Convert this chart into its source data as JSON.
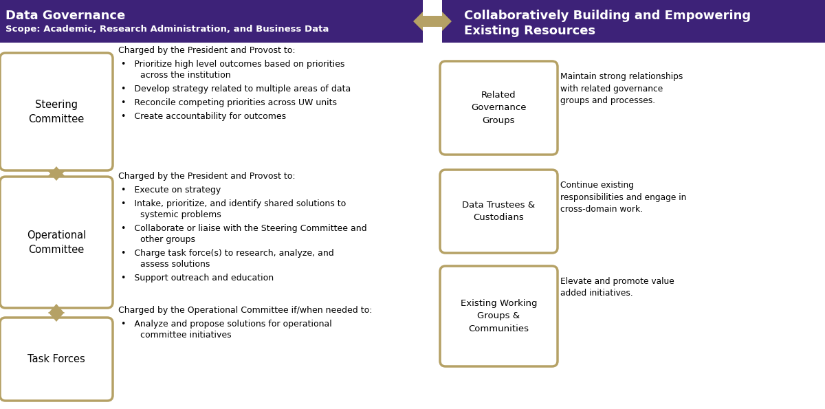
{
  "fig_width": 12.0,
  "fig_height": 5.95,
  "bg_color": "#ffffff",
  "purple": "#3d2278",
  "gold": "#b5a165",
  "header_left_title": "Data Governance",
  "header_left_subtitle": "Scope: Academic, Research Administration, and Business Data",
  "header_right_title": "Collaboratively Building and Empowering\nExisting Resources",
  "sc_label": "Steering\nCommittee",
  "oc_label": "Operational\nCommittee",
  "tf_label": "Task Forces",
  "rg_label": "Related\nGovernance\nGroups",
  "dt_label": "Data Trustees &\nCustodians",
  "ew_label": "Existing Working\nGroups &\nCommunities",
  "sc_header": "Charged by the President and Provost to:",
  "sc_bullets": [
    "Prioritize high level outcomes based on priorities\n       across the institution",
    "Develop strategy related to multiple areas of data",
    "Reconcile competing priorities across UW units",
    "Create accountability for outcomes"
  ],
  "oc_header": "Charged by the President and Provost to:",
  "oc_bullets": [
    "Execute on strategy",
    "Intake, prioritize, and identify shared solutions to\n       systemic problems",
    "Collaborate or liaise with the Steering Committee and\n       other groups",
    "Charge task force(s) to research, analyze, and\n       assess solutions",
    "Support outreach and education"
  ],
  "tf_header": "Charged by the Operational Committee if/when needed to:",
  "tf_bullets": [
    "Analyze and propose solutions for operational\n       committee initiatives"
  ],
  "rg_text": "Maintain strong relationships\nwith related governance\ngroups and processes.",
  "dt_text": "Continue existing\nresponsibilities and engage in\ncross-domain work.",
  "ew_text": "Elevate and promote value\nadded initiatives."
}
